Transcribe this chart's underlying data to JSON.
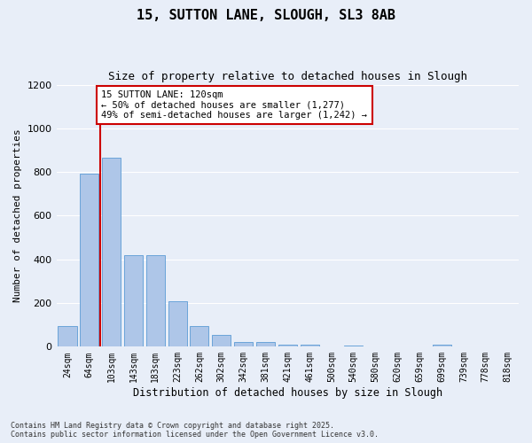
{
  "title1": "15, SUTTON LANE, SLOUGH, SL3 8AB",
  "title2": "Size of property relative to detached houses in Slough",
  "xlabel": "Distribution of detached houses by size in Slough",
  "ylabel": "Number of detached properties",
  "categories": [
    "24sqm",
    "64sqm",
    "103sqm",
    "143sqm",
    "183sqm",
    "223sqm",
    "262sqm",
    "302sqm",
    "342sqm",
    "381sqm",
    "421sqm",
    "461sqm",
    "500sqm",
    "540sqm",
    "580sqm",
    "620sqm",
    "659sqm",
    "699sqm",
    "739sqm",
    "778sqm",
    "818sqm"
  ],
  "bar_values": [
    93,
    793,
    865,
    420,
    420,
    207,
    93,
    55,
    20,
    20,
    10,
    10,
    0,
    5,
    0,
    0,
    0,
    10,
    0,
    0,
    0
  ],
  "bar_color": "#aec6e8",
  "bar_edgecolor": "#5b9bd5",
  "property_line_color": "#cc0000",
  "annotation_text": "15 SUTTON LANE: 120sqm\n← 50% of detached houses are smaller (1,277)\n49% of semi-detached houses are larger (1,242) →",
  "annotation_box_color": "#cc0000",
  "ylim": [
    0,
    1200
  ],
  "yticks": [
    0,
    200,
    400,
    600,
    800,
    1000,
    1200
  ],
  "background_color": "#e8eef8",
  "fig_background_color": "#e8eef8",
  "grid_color": "#ffffff",
  "footer_text": "Contains HM Land Registry data © Crown copyright and database right 2025.\nContains public sector information licensed under the Open Government Licence v3.0."
}
